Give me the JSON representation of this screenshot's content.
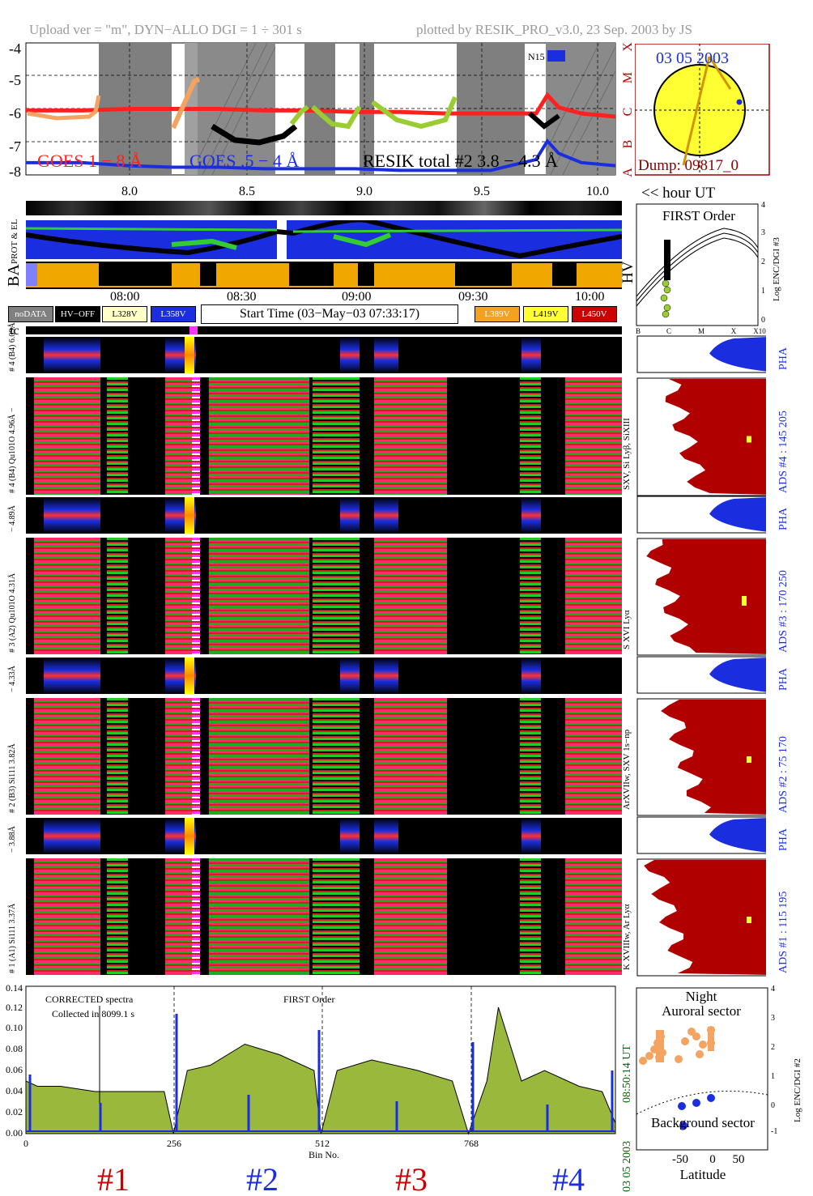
{
  "header": {
    "left": "Upload ver = \"m\", DYN−ALLO DGI =   1 ÷ 301 s",
    "right": "plotted by RESIK_PRO_v3.0, 23 Sep. 2003 by JS"
  },
  "lightcurve": {
    "y_ticks": [
      "-4",
      "-5",
      "-6",
      "-7",
      "-8"
    ],
    "x_ticks": [
      "8.0",
      "8.5",
      "9.0",
      "9.5",
      "10.0"
    ],
    "class_letters": [
      "X",
      "M",
      "C",
      "B",
      "A"
    ],
    "goes_long_label": "GOES 1 − 8 Å",
    "goes_short_label": "GOES .5 − 4 Å",
    "resik_label": "RESIK total #2  3.8 − 4.3 Å",
    "legend_tag": "N15",
    "hour_label": "<< hour UT",
    "colors": {
      "goes_long": "#ff2020",
      "goes_short": "#1a2ee0",
      "resik_green": "#9acd32",
      "resik_orange": "#f4a460",
      "grey_band": "#808080"
    }
  },
  "sun": {
    "date": "03 05 2003",
    "dump": "Dump: 09817_0"
  },
  "side_labels": {
    "prot": "PROT & EL",
    "ba": "BA",
    "hv": "HV",
    "tc": "tc"
  },
  "order_plot": {
    "title": "FIRST Order",
    "y_label": "Log ENC/DGI #3",
    "y_ticks": [
      "4",
      "3",
      "2",
      "1",
      "0"
    ],
    "x_ticks": [
      "B",
      "C",
      "M",
      "X",
      "X10"
    ]
  },
  "time_axis": {
    "ticks": [
      "08:00",
      "08:30",
      "09:00",
      "09:30",
      "10:00"
    ]
  },
  "legend": {
    "nodata": "noDATA",
    "hvoff": "HV−OFF",
    "l328": "L328V",
    "l358": "L358V",
    "start_time": "Start Time (03−May−03 07:33:17)",
    "l389": "L389V",
    "l419": "L419V",
    "l450": "L450V"
  },
  "channels": [
    {
      "pha_label": "# 4 (B4)  6.09Å",
      "spec_label": "# 4 (B4)  Qu101O  4.96Å −",
      "right_label": "SXV, Si Lyβ, SiXIII",
      "ads": "ADS #4 :  145 205",
      "pha": "PHA"
    },
    {
      "pha_label": "− 4.89Å",
      "spec_label": "# 3 (A2)  Qu101O  4.31Å",
      "right_label": "S XVI Lyα",
      "ads": "ADS #3 :  170 250",
      "pha": "PHA"
    },
    {
      "pha_label": "− 4.33Å",
      "spec_label": "# 2 (B3)  Si111  3.82Å",
      "right_label": "ArXVIIw, SXV 1s−np",
      "ads": "ADS #2 :  75 170",
      "pha": "PHA"
    },
    {
      "pha_label": "− 3.88Å",
      "spec_label": "# 1 (A1)  Si111  3.37Å",
      "right_label": "K XVIIIw, Ar Lyα",
      "ads": "ADS #1 :  115 195",
      "pha": "PHA"
    }
  ],
  "bottom": {
    "corrected": "CORRECTED spectra",
    "collected": "Collected in  8099.1 s",
    "first_order": "FIRST Order",
    "stamp_time": "08:50:14 UT",
    "stamp_date": "03 05 2003",
    "x_label": "Bin No.",
    "x_ticks": [
      "0",
      "256",
      "512",
      "768"
    ],
    "y_ticks": [
      "0.00",
      "0.02",
      "0.04",
      "0.06",
      "0.08",
      "0.10",
      "0.12",
      "0.14"
    ],
    "groups": [
      "#1",
      "#2",
      "#3",
      "#4"
    ]
  },
  "latitude_plot": {
    "night": "Night",
    "auroral": "Auroral sector",
    "background": "Background sector",
    "x_label": "Latitude",
    "x_ticks": [
      "-50",
      "0",
      "50"
    ],
    "y_ticks": [
      "4",
      "3",
      "2",
      "1",
      "0",
      "-1"
    ],
    "y_label": "Log ENC/DGI #2"
  },
  "chart_data": [
    {
      "type": "line",
      "title": "",
      "xlabel": "",
      "ylabel": "",
      "x_unit": "hour UT",
      "xlim": [
        7.55,
        10.15
      ],
      "ylim": [
        -8.2,
        -3.9
      ],
      "series": [
        {
          "name": "GOES 1 − 8 Å",
          "x": [
            7.55,
            7.8,
            8.0,
            8.2,
            8.4,
            8.6,
            8.8,
            9.0,
            9.2,
            9.4,
            9.6,
            9.8,
            9.85,
            9.9,
            10.0,
            10.15
          ],
          "values": [
            -6.1,
            -6.1,
            -6.05,
            -6.05,
            -6.05,
            -6.1,
            -6.1,
            -6.15,
            -6.15,
            -6.2,
            -6.2,
            -6.2,
            -5.6,
            -6.0,
            -6.2,
            -6.3
          ]
        },
        {
          "name": "GOES .5 − 4 Å",
          "x": [
            7.55,
            7.8,
            8.0,
            8.2,
            8.4,
            8.6,
            8.8,
            9.0,
            9.2,
            9.4,
            9.6,
            9.8,
            9.85,
            9.9,
            10.0,
            10.15
          ],
          "values": [
            -7.8,
            -7.8,
            -7.9,
            -7.95,
            -7.95,
            -8.0,
            -8.0,
            -8.0,
            -8.05,
            -8.05,
            -8.05,
            -7.7,
            -7.1,
            -7.5,
            -7.8,
            -7.9
          ]
        }
      ]
    },
    {
      "type": "area",
      "title": "",
      "xlabel": "Bin No.",
      "ylabel": "",
      "xlim": [
        0,
        1023
      ],
      "ylim": [
        0,
        0.14
      ],
      "x_ticks": [
        0,
        256,
        512,
        768
      ],
      "series": [
        {
          "name": "CORRECTED spectra",
          "x": [
            0,
            20,
            60,
            120,
            180,
            240,
            256,
            280,
            320,
            380,
            440,
            500,
            512,
            540,
            600,
            680,
            740,
            768,
            800,
            820,
            860,
            900,
            960,
            1000,
            1023
          ],
          "values": [
            0.05,
            0.045,
            0.045,
            0.04,
            0.04,
            0.04,
            0.0,
            0.06,
            0.065,
            0.085,
            0.075,
            0.06,
            0.0,
            0.06,
            0.07,
            0.06,
            0.05,
            0.0,
            0.05,
            0.12,
            0.05,
            0.06,
            0.045,
            0.04,
            0.01
          ]
        }
      ]
    }
  ]
}
